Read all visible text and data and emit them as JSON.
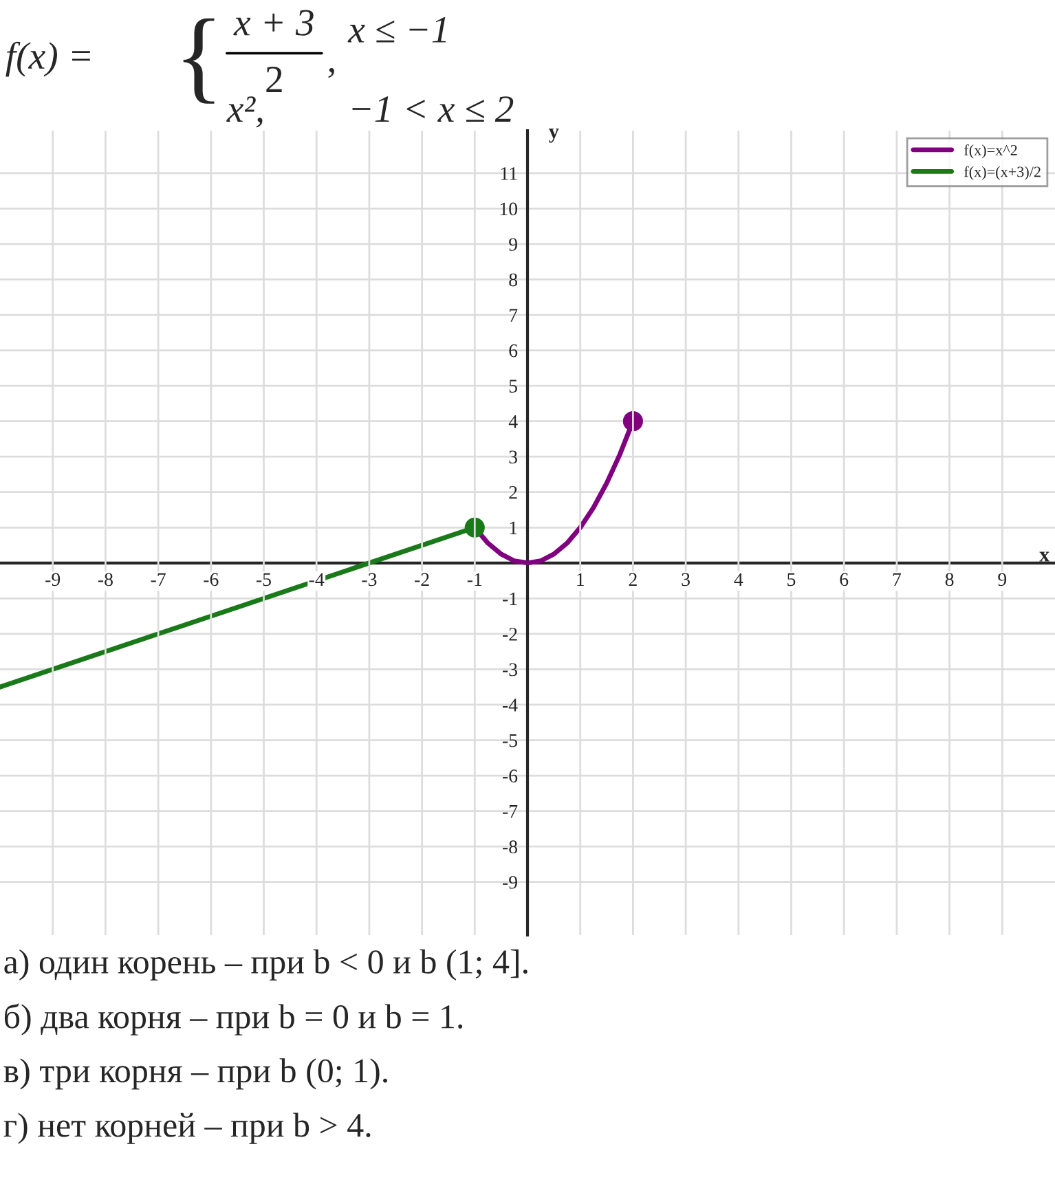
{
  "chart_data": {
    "type": "line",
    "xlabel": "x",
    "ylabel": "y",
    "xlim": [
      -10,
      10
    ],
    "ylim": [
      -10.5,
      12.2
    ],
    "xticks": [
      -9,
      -8,
      -7,
      -6,
      -5,
      -4,
      -3,
      -2,
      -1,
      1,
      2,
      3,
      4,
      5,
      6,
      7,
      8,
      9
    ],
    "yticks": [
      -9,
      -8,
      -7,
      -6,
      -5,
      -4,
      -3,
      -2,
      -1,
      1,
      2,
      3,
      4,
      5,
      6,
      7,
      8,
      9,
      10,
      11
    ],
    "grid": true,
    "legend": "top right",
    "series": [
      {
        "name": "f(x)=x^2",
        "color": "#800080",
        "x": [
          -1,
          -0.75,
          -0.5,
          -0.25,
          0,
          0.25,
          0.5,
          0.75,
          1,
          1.25,
          1.5,
          1.75,
          2
        ],
        "values": [
          1,
          0.56,
          0.25,
          0.06,
          0,
          0.06,
          0.25,
          0.56,
          1,
          1.56,
          2.25,
          3.06,
          4
        ]
      },
      {
        "name": "f(x)=(x+3)/2",
        "color": "#1a7a1a",
        "x": [
          -10,
          -1
        ],
        "values": [
          -3.5,
          1
        ]
      },
      {
        "color": "#1a7a1a",
        "type": "scatter",
        "marker": "circle",
        "x": [
          -1
        ],
        "values": [
          1
        ]
      },
      {
        "color": "#800080",
        "type": "scatter",
        "marker": "circle",
        "x": [
          2
        ],
        "values": [
          4
        ]
      }
    ],
    "annotations": [
      "f(x) =",
      "{",
      "x + 3",
      "2",
      ",",
      "x ≤ −1",
      "x²,",
      "−1 < x ≤ 2",
      "а) один корень – при b < 0 и b (1; 4].",
      "б) два корня – при b = 0 и b = 1.",
      "в) три корня – при b (0; 1).",
      "г) нет корней – при b > 4."
    ]
  }
}
